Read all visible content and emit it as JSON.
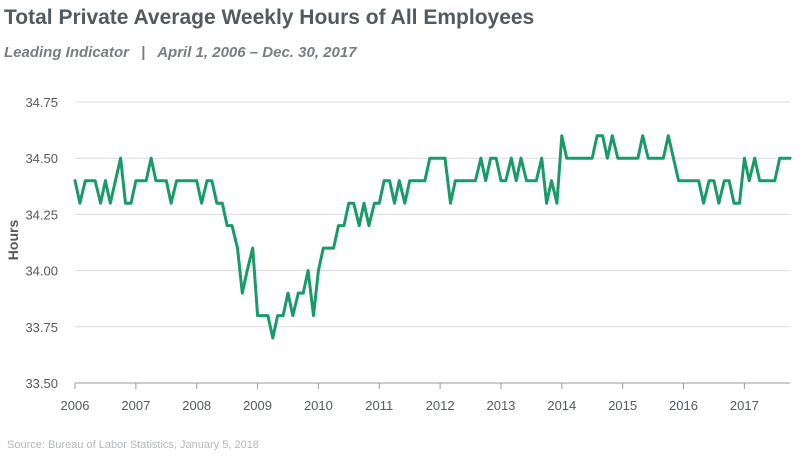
{
  "title": "Total Private Average Weekly Hours of All Employees",
  "subtitle": {
    "left": "Leading Indicator",
    "separator": "|",
    "right": "April 1, 2006 – Dec. 30, 2017"
  },
  "source": "Source: Bureau of Labor Statistics, January 5, 2018",
  "colors": {
    "line": "#1a9a6a",
    "grid": "#dcdcdc",
    "axis": "#9a9a9a",
    "title": "#55595c"
  },
  "chart_data": {
    "type": "line",
    "title": "Total Private Average Weekly Hours of All Employees",
    "xlabel": "",
    "ylabel": "Hours",
    "ylim": [
      33.5,
      34.75
    ],
    "xlim": [
      2006.0,
      2017.75
    ],
    "y_ticks": [
      "33.50",
      "33.75",
      "34.00",
      "34.25",
      "34.50",
      "34.75"
    ],
    "x_ticks": [
      "2006",
      "2007",
      "2008",
      "2009",
      "2010",
      "2011",
      "2012",
      "2013",
      "2014",
      "2015",
      "2016",
      "2017"
    ],
    "grid": "horizontal",
    "series": [
      {
        "values": [
          [
            2006.0,
            34.4
          ],
          [
            2006.08,
            34.3
          ],
          [
            2006.17,
            34.4
          ],
          [
            2006.33,
            34.4
          ],
          [
            2006.42,
            34.3
          ],
          [
            2006.5,
            34.4
          ],
          [
            2006.58,
            34.3
          ],
          [
            2006.75,
            34.5
          ],
          [
            2006.83,
            34.3
          ],
          [
            2006.92,
            34.3
          ],
          [
            2007.0,
            34.4
          ],
          [
            2007.17,
            34.4
          ],
          [
            2007.25,
            34.5
          ],
          [
            2007.33,
            34.4
          ],
          [
            2007.5,
            34.4
          ],
          [
            2007.58,
            34.3
          ],
          [
            2007.67,
            34.4
          ],
          [
            2007.92,
            34.4
          ],
          [
            2008.0,
            34.4
          ],
          [
            2008.08,
            34.3
          ],
          [
            2008.17,
            34.4
          ],
          [
            2008.25,
            34.4
          ],
          [
            2008.33,
            34.3
          ],
          [
            2008.42,
            34.3
          ],
          [
            2008.5,
            34.2
          ],
          [
            2008.58,
            34.2
          ],
          [
            2008.67,
            34.1
          ],
          [
            2008.75,
            33.9
          ],
          [
            2008.83,
            34.0
          ],
          [
            2008.92,
            34.1
          ],
          [
            2009.0,
            33.8
          ],
          [
            2009.17,
            33.8
          ],
          [
            2009.25,
            33.7
          ],
          [
            2009.33,
            33.8
          ],
          [
            2009.42,
            33.8
          ],
          [
            2009.5,
            33.9
          ],
          [
            2009.58,
            33.8
          ],
          [
            2009.67,
            33.9
          ],
          [
            2009.75,
            33.9
          ],
          [
            2009.83,
            34.0
          ],
          [
            2009.92,
            33.8
          ],
          [
            2010.0,
            34.0
          ],
          [
            2010.08,
            34.1
          ],
          [
            2010.25,
            34.1
          ],
          [
            2010.33,
            34.2
          ],
          [
            2010.42,
            34.2
          ],
          [
            2010.5,
            34.3
          ],
          [
            2010.58,
            34.3
          ],
          [
            2010.67,
            34.2
          ],
          [
            2010.75,
            34.3
          ],
          [
            2010.83,
            34.2
          ],
          [
            2010.92,
            34.3
          ],
          [
            2011.0,
            34.3
          ],
          [
            2011.08,
            34.4
          ],
          [
            2011.17,
            34.4
          ],
          [
            2011.25,
            34.3
          ],
          [
            2011.33,
            34.4
          ],
          [
            2011.42,
            34.3
          ],
          [
            2011.5,
            34.4
          ],
          [
            2011.75,
            34.4
          ],
          [
            2011.83,
            34.5
          ],
          [
            2012.08,
            34.5
          ],
          [
            2012.17,
            34.3
          ],
          [
            2012.25,
            34.4
          ],
          [
            2012.58,
            34.4
          ],
          [
            2012.67,
            34.5
          ],
          [
            2012.75,
            34.4
          ],
          [
            2012.83,
            34.5
          ],
          [
            2012.92,
            34.5
          ],
          [
            2013.0,
            34.4
          ],
          [
            2013.08,
            34.4
          ],
          [
            2013.17,
            34.5
          ],
          [
            2013.25,
            34.4
          ],
          [
            2013.33,
            34.5
          ],
          [
            2013.42,
            34.4
          ],
          [
            2013.58,
            34.4
          ],
          [
            2013.67,
            34.5
          ],
          [
            2013.75,
            34.3
          ],
          [
            2013.83,
            34.4
          ],
          [
            2013.92,
            34.3
          ],
          [
            2014.0,
            34.6
          ],
          [
            2014.08,
            34.5
          ],
          [
            2014.5,
            34.5
          ],
          [
            2014.58,
            34.6
          ],
          [
            2014.67,
            34.6
          ],
          [
            2014.75,
            34.5
          ],
          [
            2014.83,
            34.6
          ],
          [
            2014.92,
            34.5
          ],
          [
            2015.25,
            34.5
          ],
          [
            2015.33,
            34.6
          ],
          [
            2015.42,
            34.5
          ],
          [
            2015.67,
            34.5
          ],
          [
            2015.75,
            34.6
          ],
          [
            2015.92,
            34.4
          ],
          [
            2016.25,
            34.4
          ],
          [
            2016.33,
            34.3
          ],
          [
            2016.42,
            34.4
          ],
          [
            2016.5,
            34.4
          ],
          [
            2016.58,
            34.3
          ],
          [
            2016.67,
            34.4
          ],
          [
            2016.75,
            34.4
          ],
          [
            2016.83,
            34.3
          ],
          [
            2016.92,
            34.3
          ],
          [
            2017.0,
            34.5
          ],
          [
            2017.08,
            34.4
          ],
          [
            2017.17,
            34.5
          ],
          [
            2017.25,
            34.4
          ],
          [
            2017.5,
            34.4
          ],
          [
            2017.58,
            34.5
          ],
          [
            2017.75,
            34.5
          ]
        ]
      }
    ]
  }
}
